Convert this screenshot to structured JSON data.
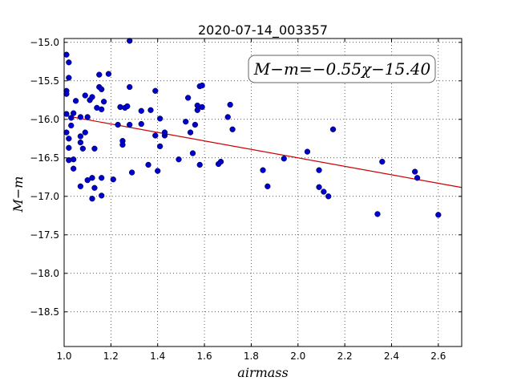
{
  "chart_data": {
    "type": "scatter",
    "title": "2020-07-14_003357",
    "xlabel": "airmass",
    "ylabel": "M−m",
    "xlim": [
      1.0,
      2.7
    ],
    "ylim": [
      -18.95,
      -14.95
    ],
    "grid": true,
    "x_ticks": [
      1.0,
      1.2,
      1.4,
      1.6,
      1.8,
      2.0,
      2.2,
      2.4,
      2.6
    ],
    "x_tick_labels": [
      "1.0",
      "1.2",
      "1.4",
      "1.6",
      "1.8",
      "2.0",
      "2.2",
      "2.4",
      "2.6"
    ],
    "y_ticks": [
      -15.0,
      -15.5,
      -16.0,
      -16.5,
      -17.0,
      -17.5,
      -18.0,
      -18.5
    ],
    "y_tick_labels": [
      "−15.0",
      "−15.5",
      "−16.0",
      "−16.5",
      "−17.0",
      "−17.5",
      "−18.0",
      "−18.5"
    ],
    "annotation": "M−m=−0.55χ−15.40",
    "fit": {
      "slope": -0.55,
      "intercept": -15.4,
      "color": "#cc0000"
    },
    "point_color": "#0000cc",
    "points": [
      [
        1.01,
        -15.16
      ],
      [
        1.02,
        -15.26
      ],
      [
        1.02,
        -15.46
      ],
      [
        1.01,
        -15.63
      ],
      [
        1.01,
        -15.67
      ],
      [
        1.01,
        -15.93
      ],
      [
        1.01,
        -16.17
      ],
      [
        1.02,
        -16.25
      ],
      [
        1.02,
        -16.37
      ],
      [
        1.02,
        -16.53
      ],
      [
        1.04,
        -16.52
      ],
      [
        1.04,
        -16.64
      ],
      [
        1.03,
        -16.08
      ],
      [
        1.03,
        -15.98
      ],
      [
        1.04,
        -15.92
      ],
      [
        1.05,
        -15.76
      ],
      [
        1.07,
        -15.97
      ],
      [
        1.07,
        -16.22
      ],
      [
        1.07,
        -16.3
      ],
      [
        1.08,
        -16.38
      ],
      [
        1.09,
        -16.17
      ],
      [
        1.07,
        -16.87
      ],
      [
        1.09,
        -15.69
      ],
      [
        1.1,
        -15.97
      ],
      [
        1.1,
        -16.79
      ],
      [
        1.11,
        -15.75
      ],
      [
        1.12,
        -15.71
      ],
      [
        1.12,
        -16.76
      ],
      [
        1.12,
        -17.03
      ],
      [
        1.13,
        -16.38
      ],
      [
        1.13,
        -16.89
      ],
      [
        1.14,
        -15.85
      ],
      [
        1.15,
        -15.42
      ],
      [
        1.15,
        -15.58
      ],
      [
        1.16,
        -15.61
      ],
      [
        1.16,
        -15.87
      ],
      [
        1.17,
        -15.77
      ],
      [
        1.16,
        -16.76
      ],
      [
        1.16,
        -16.99
      ],
      [
        1.19,
        -15.41
      ],
      [
        1.21,
        -16.78
      ],
      [
        1.23,
        -16.07
      ],
      [
        1.24,
        -15.84
      ],
      [
        1.25,
        -16.28
      ],
      [
        1.25,
        -16.33
      ],
      [
        1.26,
        -15.85
      ],
      [
        1.27,
        -15.83
      ],
      [
        1.28,
        -14.98
      ],
      [
        1.28,
        -15.58
      ],
      [
        1.28,
        -16.07
      ],
      [
        1.29,
        -16.69
      ],
      [
        1.33,
        -16.06
      ],
      [
        1.33,
        -15.89
      ],
      [
        1.36,
        -16.59
      ],
      [
        1.37,
        -15.88
      ],
      [
        1.39,
        -15.63
      ],
      [
        1.39,
        -16.21
      ],
      [
        1.4,
        -16.67
      ],
      [
        1.41,
        -15.99
      ],
      [
        1.41,
        -16.35
      ],
      [
        1.43,
        -16.21
      ],
      [
        1.43,
        -16.17
      ],
      [
        1.49,
        -16.52
      ],
      [
        1.52,
        -16.03
      ],
      [
        1.53,
        -15.72
      ],
      [
        1.54,
        -16.17
      ],
      [
        1.55,
        -16.44
      ],
      [
        1.56,
        -16.07
      ],
      [
        1.57,
        -15.82
      ],
      [
        1.57,
        -15.88
      ],
      [
        1.58,
        -16.59
      ],
      [
        1.58,
        -15.57
      ],
      [
        1.59,
        -15.56
      ],
      [
        1.59,
        -15.84
      ],
      [
        1.66,
        -16.58
      ],
      [
        1.67,
        -16.55
      ],
      [
        1.7,
        -15.97
      ],
      [
        1.71,
        -15.81
      ],
      [
        1.72,
        -16.13
      ],
      [
        1.85,
        -16.66
      ],
      [
        1.87,
        -16.87
      ],
      [
        1.94,
        -16.51
      ],
      [
        2.04,
        -16.42
      ],
      [
        2.09,
        -16.66
      ],
      [
        2.09,
        -16.88
      ],
      [
        2.11,
        -16.94
      ],
      [
        2.13,
        -17.0
      ],
      [
        2.15,
        -16.13
      ],
      [
        2.34,
        -17.23
      ],
      [
        2.36,
        -16.55
      ],
      [
        2.5,
        -16.68
      ],
      [
        2.51,
        -16.76
      ],
      [
        2.6,
        -17.24
      ]
    ]
  }
}
